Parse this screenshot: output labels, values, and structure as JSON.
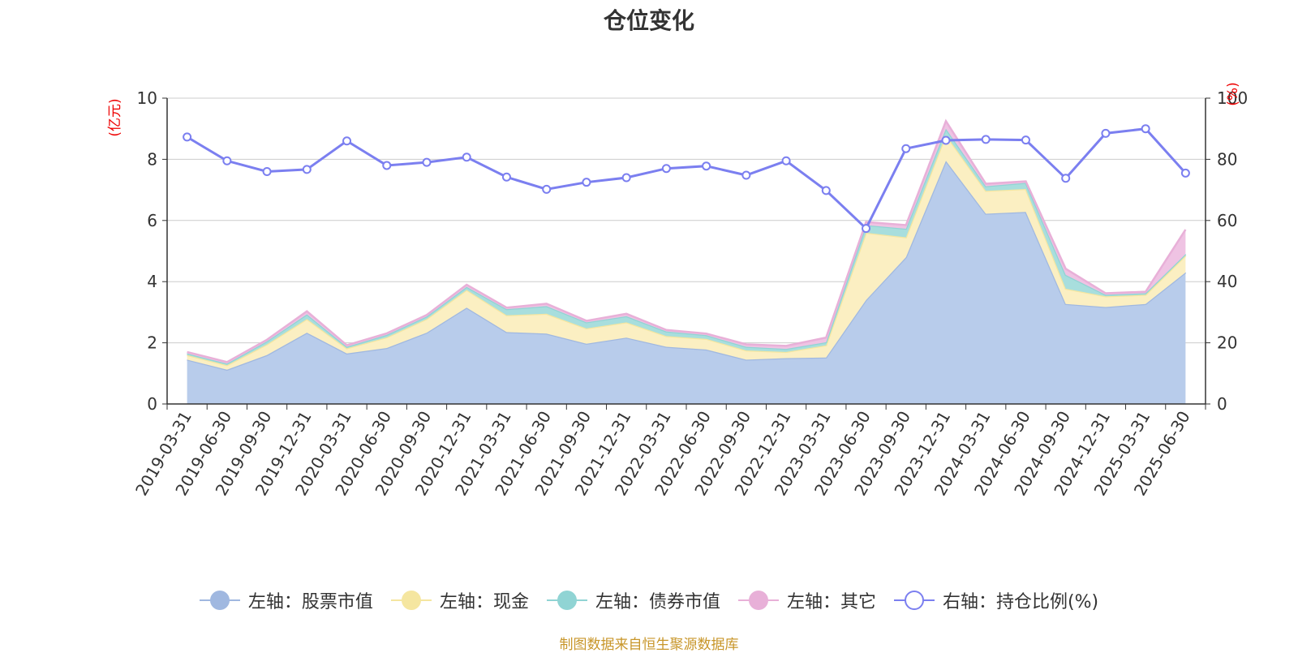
{
  "chart_data": {
    "type": "area",
    "title": "仓位变化",
    "source_note": "制图数据来自恒生聚源数据库",
    "left_axis": {
      "unit": "(亿元)",
      "ylim": [
        0,
        10
      ],
      "ticks": [
        0,
        2,
        4,
        6,
        8,
        10
      ]
    },
    "right_axis": {
      "unit": "(%)",
      "ylim": [
        0,
        100
      ],
      "ticks": [
        0,
        20,
        40,
        60,
        80,
        100
      ]
    },
    "grid": true,
    "legend_position": "bottom",
    "categories": [
      "2019-03-31",
      "2019-06-30",
      "2019-09-30",
      "2019-12-31",
      "2020-03-31",
      "2020-06-30",
      "2020-09-30",
      "2020-12-31",
      "2021-03-31",
      "2021-06-30",
      "2021-09-30",
      "2021-12-31",
      "2022-03-31",
      "2022-06-30",
      "2022-09-30",
      "2022-12-31",
      "2023-03-31",
      "2023-06-30",
      "2023-09-30",
      "2023-12-31",
      "2024-03-31",
      "2024-06-30",
      "2024-09-30",
      "2024-12-31",
      "2025-03-31",
      "2025-06-30"
    ],
    "series": [
      {
        "name": "左轴：股票市值",
        "axis": "left",
        "stacked": true,
        "color": "#a0b8e0",
        "fill": "#b8cceb",
        "values": [
          1.45,
          1.12,
          1.6,
          2.33,
          1.65,
          1.83,
          2.33,
          3.15,
          2.35,
          2.3,
          1.97,
          2.17,
          1.87,
          1.78,
          1.45,
          1.5,
          1.52,
          3.4,
          4.8,
          7.95,
          6.22,
          6.28,
          3.27,
          3.17,
          3.27,
          4.3
        ]
      },
      {
        "name": "左轴：现金",
        "axis": "left",
        "stacked": true,
        "color": "#f5e6a0",
        "fill": "#fbefc2",
        "values": [
          0.15,
          0.15,
          0.35,
          0.45,
          0.17,
          0.35,
          0.45,
          0.58,
          0.55,
          0.65,
          0.5,
          0.5,
          0.35,
          0.35,
          0.3,
          0.2,
          0.4,
          2.2,
          0.65,
          0.85,
          0.75,
          0.75,
          0.5,
          0.35,
          0.3,
          0.55
        ]
      },
      {
        "name": "左轴：债券市值",
        "axis": "left",
        "stacked": true,
        "color": "#90d4d4",
        "fill": "#a8dedd",
        "values": [
          0.05,
          0.05,
          0.1,
          0.15,
          0.05,
          0.08,
          0.08,
          0.1,
          0.2,
          0.25,
          0.2,
          0.2,
          0.15,
          0.12,
          0.12,
          0.1,
          0.1,
          0.25,
          0.28,
          0.2,
          0.15,
          0.2,
          0.45,
          0.05,
          0.05,
          0.05
        ]
      },
      {
        "name": "左轴：其它",
        "axis": "left",
        "stacked": true,
        "color": "#e8b0d8",
        "fill": "#efc3e3",
        "values": [
          0.05,
          0.05,
          0.05,
          0.1,
          0.05,
          0.05,
          0.05,
          0.07,
          0.05,
          0.08,
          0.05,
          0.08,
          0.05,
          0.05,
          0.08,
          0.1,
          0.15,
          0.1,
          0.12,
          0.25,
          0.08,
          0.05,
          0.2,
          0.05,
          0.05,
          0.8
        ]
      },
      {
        "name": "右轴：持仓比例(%)",
        "axis": "right",
        "stacked": false,
        "color": "#7b7ff0",
        "values": [
          87.3,
          79.5,
          76,
          76.7,
          86,
          78,
          79,
          80.7,
          74.2,
          70.2,
          72.5,
          74,
          77,
          77.8,
          74.8,
          79.5,
          69.8,
          57.4,
          83.5,
          86.2,
          86.5,
          86.3,
          73.8,
          88.5,
          90,
          75.5
        ]
      }
    ]
  }
}
